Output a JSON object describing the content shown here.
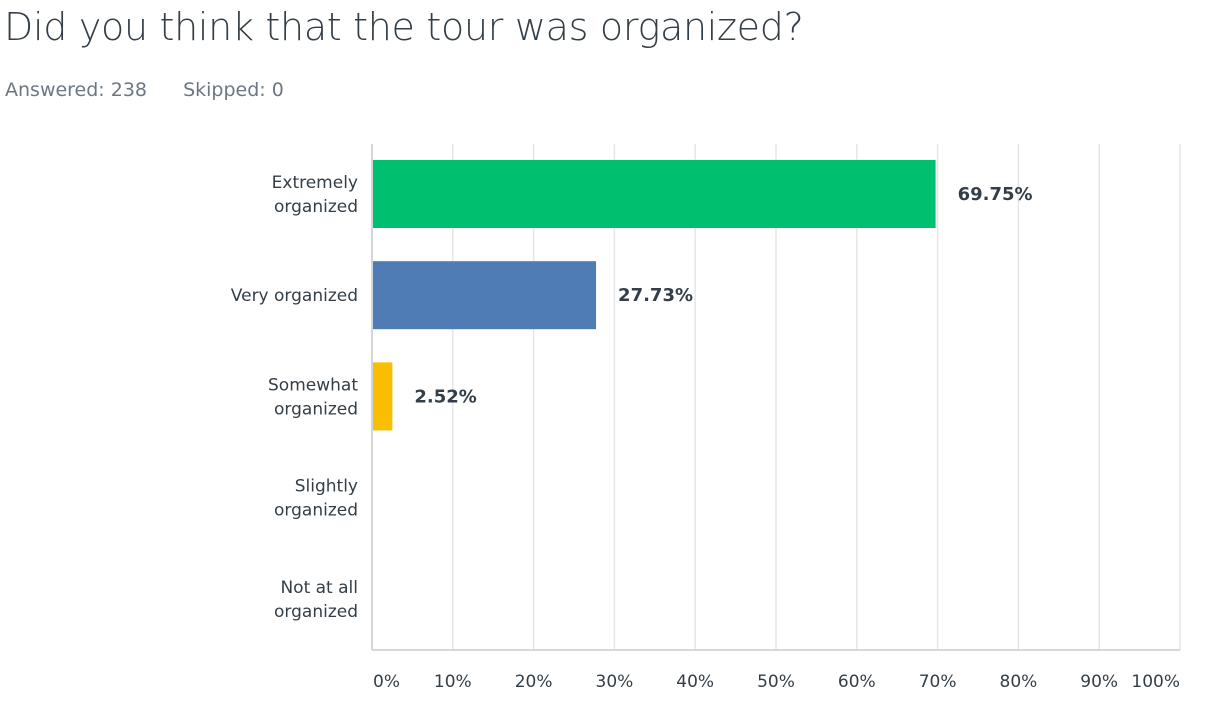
{
  "question": {
    "title": "Did you think that the tour was organized?",
    "answered": "Answered: 238",
    "skipped": "Skipped: 0"
  },
  "chart_data": {
    "type": "bar",
    "orientation": "horizontal",
    "categories": [
      [
        "Extremely",
        "organized"
      ],
      [
        "Very organized"
      ],
      [
        "Somewhat",
        "organized"
      ],
      [
        "Slightly",
        "organized"
      ],
      [
        "Not at all",
        "organized"
      ]
    ],
    "values": [
      69.75,
      27.73,
      2.52,
      0,
      0
    ],
    "value_labels": [
      "69.75%",
      "27.73%",
      "2.52%",
      "",
      ""
    ],
    "colors": [
      "#00bf6f",
      "#507cb6",
      "#f9be00",
      "#6bc8cd",
      "#ff8b4f"
    ],
    "xlim": [
      0,
      100
    ],
    "xticks": [
      "0%",
      "10%",
      "20%",
      "30%",
      "40%",
      "50%",
      "60%",
      "70%",
      "80%",
      "90%",
      "100%"
    ],
    "grid": true,
    "legend": "none"
  }
}
